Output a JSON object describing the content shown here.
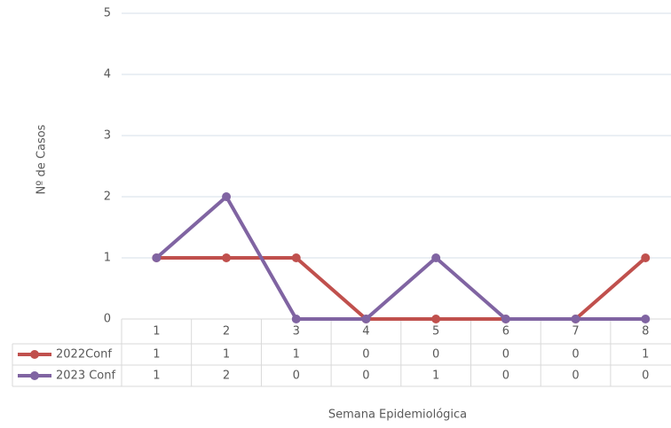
{
  "chart_data": {
    "type": "line",
    "x_label": "Semana Epidemiológica",
    "y_label": "Nº de Casos",
    "categories": [
      "1",
      "2",
      "3",
      "4",
      "5",
      "6",
      "7",
      "8"
    ],
    "series": [
      {
        "name": "2022Conf",
        "color": "#c0504d",
        "values": [
          1,
          1,
          1,
          0,
          0,
          0,
          0,
          1
        ]
      },
      {
        "name": "2023 Conf",
        "color": "#8064a2",
        "values": [
          1,
          2,
          0,
          0,
          1,
          0,
          0,
          0
        ]
      }
    ],
    "ylim": [
      0,
      5
    ],
    "yticks": [
      0,
      1,
      2,
      3,
      4,
      5
    ],
    "grid": true,
    "data_table": true
  }
}
